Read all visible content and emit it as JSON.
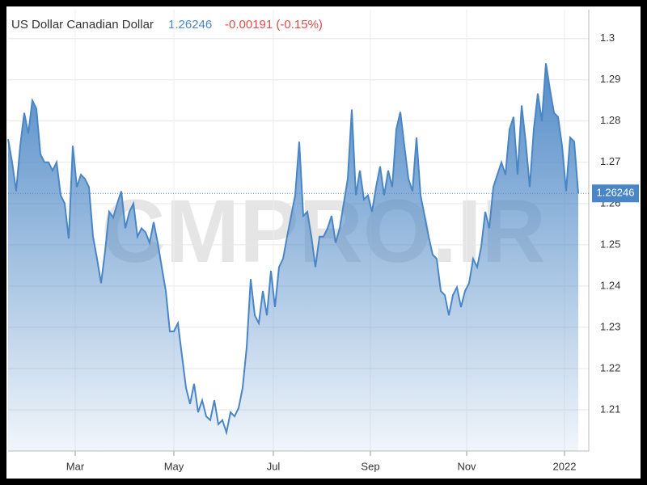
{
  "chart_data": {
    "type": "area",
    "title": "US Dollar Canadian Dollar",
    "price": "1.26246",
    "change": "-0.00191 (-0.15%)",
    "watermark": "CMPRO.IR",
    "color": "#4a86c5",
    "grid": true,
    "xlim": [
      0,
      141
    ],
    "xticks": [
      {
        "value": 16.6,
        "label": "Mar"
      },
      {
        "value": 41,
        "label": "May"
      },
      {
        "value": 65.6,
        "label": "Jul"
      },
      {
        "value": 89.6,
        "label": "Sep"
      },
      {
        "value": 113.4,
        "label": "Nov"
      },
      {
        "value": 137.6,
        "label": "2022"
      }
    ],
    "ylim": [
      1.2,
      1.307
    ],
    "yticks": [
      1.21,
      1.22,
      1.23,
      1.24,
      1.25,
      1.26,
      1.27,
      1.28,
      1.29,
      1.3
    ],
    "last_value": 1.26246,
    "values": [
      1.2756,
      1.27,
      1.263,
      1.274,
      1.282,
      1.277,
      1.285,
      1.283,
      1.272,
      1.27,
      1.27,
      1.268,
      1.27,
      1.262,
      1.26,
      1.2515,
      1.274,
      1.264,
      1.267,
      1.266,
      1.264,
      1.252,
      1.2466,
      1.2407,
      1.2485,
      1.258,
      1.2566,
      1.26,
      1.263,
      1.254,
      1.258,
      1.26,
      1.252,
      1.254,
      1.253,
      1.2505,
      1.2555,
      1.2505,
      1.2446,
      1.2388,
      1.229,
      1.229,
      1.231,
      1.2231,
      1.2153,
      1.2114,
      1.2163,
      1.2094,
      1.2123,
      1.2084,
      1.2075,
      1.2123,
      1.2065,
      1.2075,
      1.2045,
      1.2094,
      1.2084,
      1.2104,
      1.2153,
      1.2251,
      1.2417,
      1.2329,
      1.231,
      1.2388,
      1.2329,
      1.2437,
      1.2349,
      1.2446,
      1.2466,
      1.252,
      1.257,
      1.262,
      1.275,
      1.257,
      1.258,
      1.252,
      1.2446,
      1.252,
      1.252,
      1.254,
      1.257,
      1.2505,
      1.254,
      1.26,
      1.266,
      1.2828,
      1.262,
      1.268,
      1.261,
      1.262,
      1.258,
      1.264,
      1.269,
      1.262,
      1.268,
      1.264,
      1.278,
      1.2822,
      1.274,
      1.266,
      1.263,
      1.276,
      1.262,
      1.257,
      1.252,
      1.2476,
      1.2466,
      1.2388,
      1.2378,
      1.2329,
      1.2378,
      1.2397,
      1.2349,
      1.2388,
      1.2407,
      1.2466,
      1.2446,
      1.2495,
      1.258,
      1.254,
      1.264,
      1.267,
      1.27,
      1.267,
      1.278,
      1.281,
      1.267,
      1.2838,
      1.275,
      1.264,
      1.278,
      1.2867,
      1.28,
      1.294,
      1.2877,
      1.282,
      1.281,
      1.274,
      1.263,
      1.276,
      1.275,
      1.26246
    ]
  }
}
